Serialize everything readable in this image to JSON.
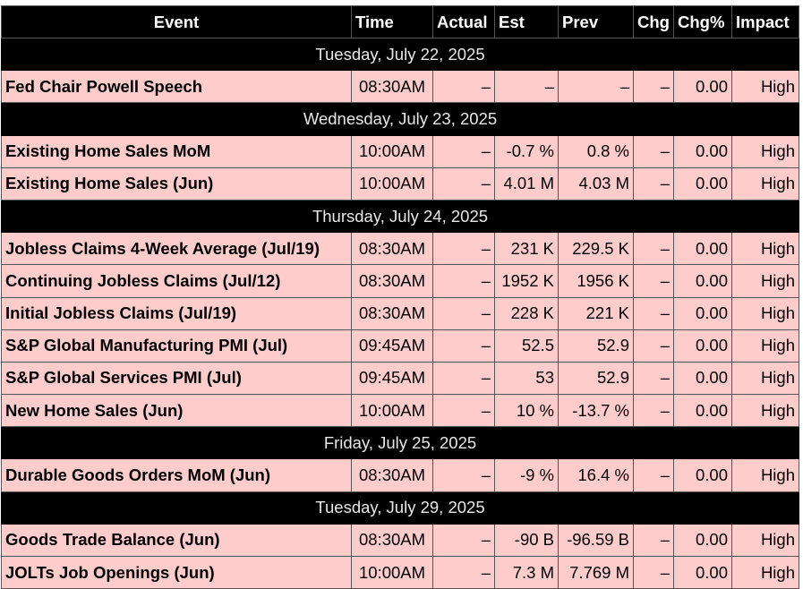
{
  "headers": {
    "event": "Event",
    "time": "Time",
    "actual": "Actual",
    "est": "Est",
    "prev": "Prev",
    "chg": "Chg",
    "chg_pct": "Chg%",
    "impact": "Impact"
  },
  "colors": {
    "header_bg": "#000000",
    "header_text": "#ffffff",
    "row_bg": "#ffcccc",
    "day_bg": "#000000"
  },
  "days": [
    {
      "date": "Tuesday, July 22, 2025",
      "events": [
        {
          "event": "Fed Chair Powell Speech",
          "time": "08:30AM",
          "actual": "–",
          "est": "–",
          "prev": "–",
          "chg": "–",
          "chg_pct": "0.00",
          "impact": "High"
        }
      ]
    },
    {
      "date": "Wednesday, July 23, 2025",
      "events": [
        {
          "event": "Existing Home Sales MoM",
          "time": "10:00AM",
          "actual": "–",
          "est": "-0.7 %",
          "prev": "0.8 %",
          "chg": "–",
          "chg_pct": "0.00",
          "impact": "High"
        },
        {
          "event": "Existing Home Sales (Jun)",
          "time": "10:00AM",
          "actual": "–",
          "est": "4.01 M",
          "prev": "4.03 M",
          "chg": "–",
          "chg_pct": "0.00",
          "impact": "High"
        }
      ]
    },
    {
      "date": "Thursday, July 24, 2025",
      "events": [
        {
          "event": "Jobless Claims 4-Week Average (Jul/19)",
          "time": "08:30AM",
          "actual": "–",
          "est": "231 K",
          "prev": "229.5 K",
          "chg": "–",
          "chg_pct": "0.00",
          "impact": "High"
        },
        {
          "event": "Continuing Jobless Claims (Jul/12)",
          "time": "08:30AM",
          "actual": "–",
          "est": "1952 K",
          "prev": "1956 K",
          "chg": "–",
          "chg_pct": "0.00",
          "impact": "High"
        },
        {
          "event": "Initial Jobless Claims (Jul/19)",
          "time": "08:30AM",
          "actual": "–",
          "est": "228 K",
          "prev": "221 K",
          "chg": "–",
          "chg_pct": "0.00",
          "impact": "High"
        },
        {
          "event": "S&P Global Manufacturing PMI (Jul)",
          "time": "09:45AM",
          "actual": "–",
          "est": "52.5",
          "prev": "52.9",
          "chg": "–",
          "chg_pct": "0.00",
          "impact": "High"
        },
        {
          "event": "S&P Global Services PMI (Jul)",
          "time": "09:45AM",
          "actual": "–",
          "est": "53",
          "prev": "52.9",
          "chg": "–",
          "chg_pct": "0.00",
          "impact": "High"
        },
        {
          "event": "New Home Sales (Jun)",
          "time": "10:00AM",
          "actual": "–",
          "est": "10 %",
          "prev": "-13.7 %",
          "chg": "–",
          "chg_pct": "0.00",
          "impact": "High"
        }
      ]
    },
    {
      "date": "Friday, July 25, 2025",
      "events": [
        {
          "event": "Durable Goods Orders MoM (Jun)",
          "time": "08:30AM",
          "actual": "–",
          "est": "-9 %",
          "prev": "16.4 %",
          "chg": "–",
          "chg_pct": "0.00",
          "impact": "High"
        }
      ]
    },
    {
      "date": "Tuesday, July 29, 2025",
      "events": [
        {
          "event": "Goods Trade Balance (Jun)",
          "time": "08:30AM",
          "actual": "–",
          "est": "-90 B",
          "prev": "-96.59 B",
          "chg": "–",
          "chg_pct": "0.00",
          "impact": "High"
        },
        {
          "event": "JOLTs Job Openings (Jun)",
          "time": "10:00AM",
          "actual": "–",
          "est": "7.3 M",
          "prev": "7.769 M",
          "chg": "–",
          "chg_pct": "0.00",
          "impact": "High"
        }
      ]
    }
  ]
}
